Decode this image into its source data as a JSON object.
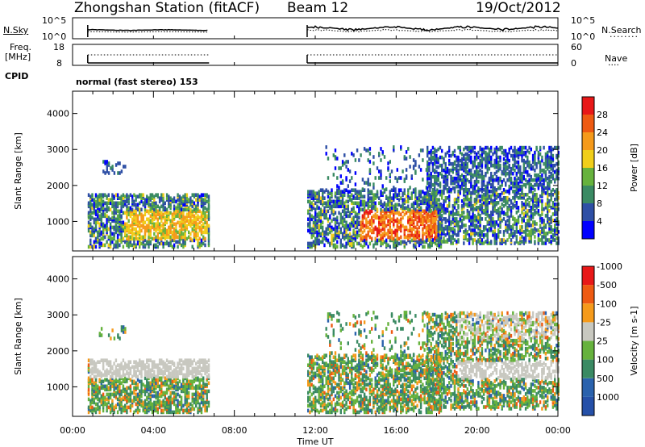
{
  "header": {
    "station_title": "Zhongshan Station (fitACF)",
    "beam": "Beam 12",
    "date": "19/Oct/2012"
  },
  "summary_panels": {
    "nsky_label": "N.Sky",
    "nsky_top": "10^5",
    "nsky_bottom": "10^0",
    "nsearch_top": "10^5",
    "nsearch_bottom": "10^0",
    "nsearch_label": "N.Search",
    "freq_label_1": "Freq.",
    "freq_label_2": "[MHz]",
    "freq_top": "18",
    "freq_bottom": "8",
    "nave_top": "60",
    "nave_bottom": "0",
    "nave_label": "Nave",
    "cpid_label": "CPID",
    "cpid_value": "normal (fast stereo) 153"
  },
  "chart_data": [
    {
      "type": "heatmap",
      "name": "power",
      "ylabel": "Slant Range [km]",
      "yticks": [
        "1000",
        "2000",
        "3000",
        "4000"
      ],
      "ylim": [
        180,
        4620
      ],
      "xlim": [
        0,
        24
      ],
      "colorbar_label": "Power [dB]",
      "colorbar_ticks": [
        "4",
        "8",
        "12",
        "16",
        "20",
        "24",
        "28"
      ],
      "colorbar_colors": [
        "#0000ff",
        "#2e4fa5",
        "#3a8a63",
        "#66b23d",
        "#f0ce1a",
        "#f59a1b",
        "#ee5a12",
        "#e81818"
      ],
      "observation_windows": [
        [
          0.75,
          6.75
        ],
        [
          11.6,
          24
        ]
      ]
    },
    {
      "type": "heatmap",
      "name": "velocity",
      "ylabel": "Slant Range [km]",
      "yticks": [
        "1000",
        "2000",
        "3000",
        "4000"
      ],
      "ylim": [
        180,
        4620
      ],
      "xlim": [
        0,
        24
      ],
      "xticks": [
        "00:00",
        "04:00",
        "08:00",
        "12:00",
        "16:00",
        "20:00",
        "00:00"
      ],
      "xlabel": "Time UT",
      "colorbar_label": "Velocity [m s-1]",
      "colorbar_ticks": [
        "1000",
        "500",
        "100",
        "25",
        "-25",
        "-100",
        "-500",
        "-1000"
      ],
      "colorbar_colors": [
        "#2550a8",
        "#2a62ad",
        "#3a8a63",
        "#66b23d",
        "#c8c8c0",
        "#f59a1b",
        "#ee5a12",
        "#e81818"
      ],
      "observation_windows": [
        [
          0.75,
          6.75
        ],
        [
          11.6,
          24
        ]
      ]
    }
  ]
}
